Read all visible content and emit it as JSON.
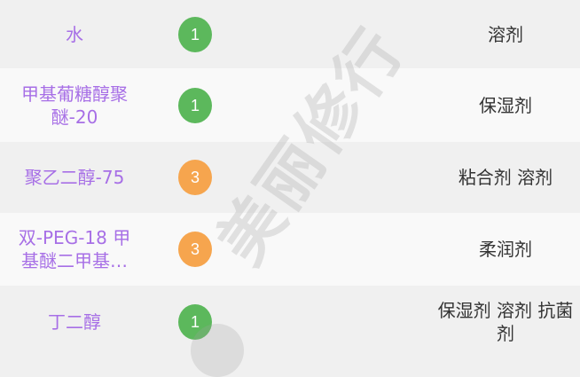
{
  "colors": {
    "name": "#a76fe6",
    "safe": "#5cb85c",
    "medium": "#f6a54e"
  },
  "watermark": "美丽修行",
  "rows": [
    {
      "name": "水",
      "score": "1",
      "level": "safe",
      "purpose": "溶剂"
    },
    {
      "name": "甲基葡糖醇聚醚-20",
      "score": "1",
      "level": "safe",
      "purpose": "保湿剂"
    },
    {
      "name": "聚乙二醇-75",
      "score": "3",
      "level": "medium",
      "purpose": "粘合剂 溶剂"
    },
    {
      "name": "双-PEG-18 甲基醚二甲基…",
      "score": "3",
      "level": "medium",
      "purpose": "柔润剂"
    },
    {
      "name": "丁二醇",
      "score": "1",
      "level": "safe",
      "purpose": "保湿剂 溶剂 抗菌剂"
    }
  ]
}
